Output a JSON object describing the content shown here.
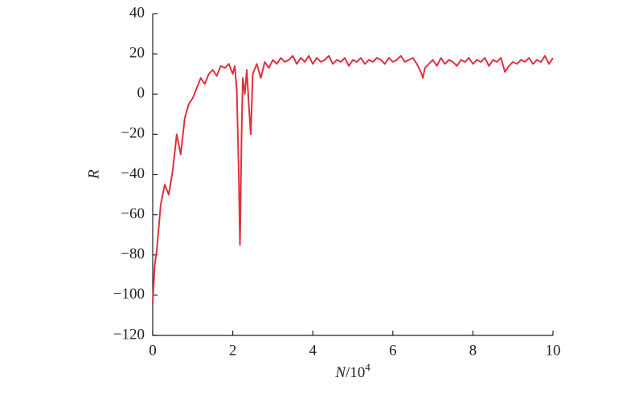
{
  "chart_data": {
    "type": "line",
    "ylabel": "R",
    "xlabel": {
      "base": "N",
      "rest": "/10",
      "exponent": "4"
    },
    "x": [
      0,
      0.05,
      0.1,
      0.2,
      0.3,
      0.4,
      0.5,
      0.6,
      0.7,
      0.8,
      0.9,
      1.0,
      1.1,
      1.2,
      1.3,
      1.4,
      1.5,
      1.6,
      1.7,
      1.8,
      1.9,
      2.0,
      2.05,
      2.1,
      2.15,
      2.18,
      2.22,
      2.25,
      2.3,
      2.35,
      2.4,
      2.45,
      2.5,
      2.6,
      2.7,
      2.8,
      2.9,
      3.0,
      3.1,
      3.2,
      3.3,
      3.4,
      3.5,
      3.6,
      3.7,
      3.8,
      3.9,
      4.0,
      4.1,
      4.2,
      4.3,
      4.4,
      4.5,
      4.6,
      4.7,
      4.8,
      4.9,
      5.0,
      5.1,
      5.2,
      5.3,
      5.4,
      5.5,
      5.6,
      5.7,
      5.8,
      5.9,
      6.0,
      6.1,
      6.2,
      6.3,
      6.4,
      6.5,
      6.6,
      6.7,
      6.75,
      6.8,
      6.9,
      7.0,
      7.1,
      7.2,
      7.3,
      7.4,
      7.5,
      7.6,
      7.7,
      7.8,
      7.9,
      8.0,
      8.1,
      8.2,
      8.3,
      8.4,
      8.5,
      8.6,
      8.7,
      8.8,
      8.9,
      9.0,
      9.1,
      9.2,
      9.3,
      9.4,
      9.5,
      9.6,
      9.7,
      9.8,
      9.9,
      10.0
    ],
    "series": [
      {
        "color": "#e0303f",
        "values": [
          -104,
          -85,
          -78,
          -55,
          -45,
          -50,
          -38,
          -20,
          -30,
          -12,
          -5,
          -2,
          3,
          8,
          5,
          10,
          12,
          9,
          14,
          13,
          15,
          10,
          14,
          2,
          -40,
          -75,
          -20,
          8,
          0,
          12,
          -5,
          -20,
          10,
          15,
          8,
          16,
          13,
          17,
          15,
          18,
          16,
          17,
          19,
          15,
          18,
          16,
          19,
          15,
          18,
          16,
          17,
          19,
          15,
          17,
          16,
          18,
          14,
          17,
          16,
          18,
          15,
          17,
          16,
          18,
          17,
          15,
          18,
          16,
          17,
          19,
          16,
          17,
          18,
          15,
          11,
          8,
          13,
          15,
          17,
          14,
          18,
          15,
          17,
          16,
          14,
          17,
          16,
          18,
          15,
          17,
          16,
          18,
          14,
          17,
          16,
          18,
          11,
          14,
          16,
          15,
          17,
          16,
          18,
          15,
          17,
          16,
          19,
          15,
          18
        ]
      }
    ],
    "xlim": [
      0,
      10
    ],
    "ylim": [
      -120,
      40
    ],
    "xticks": [
      0,
      2,
      4,
      6,
      8,
      10
    ],
    "yticks": [
      {
        "value": -120,
        "label": "−120"
      },
      {
        "value": -100,
        "label": "−100"
      },
      {
        "value": -80,
        "label": "−80"
      },
      {
        "value": -60,
        "label": "−60"
      },
      {
        "value": -40,
        "label": "−40"
      },
      {
        "value": -20,
        "label": "−20"
      },
      0,
      20,
      40
    ],
    "grid": false
  }
}
